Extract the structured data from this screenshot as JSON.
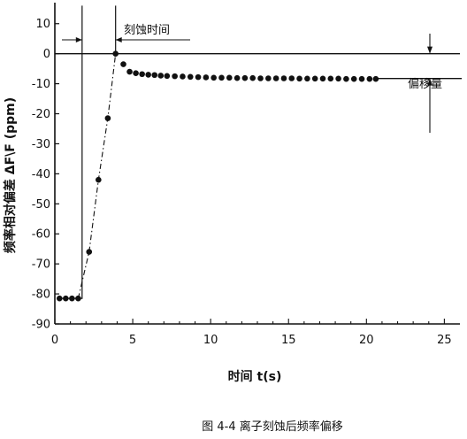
{
  "chart_data": {
    "type": "scatter",
    "title": "",
    "xlabel": "时间 t(s)",
    "ylabel": "频率相对偏差 ΔF\\F (ppm)",
    "xlim": [
      0,
      26
    ],
    "ylim": [
      -90,
      17
    ],
    "xticks": [
      0,
      5,
      10,
      15,
      20,
      25
    ],
    "yticks": [
      10,
      0,
      -10,
      -20,
      -30,
      -40,
      -50,
      -60,
      -70,
      -80,
      -90
    ],
    "grid": false,
    "legend": "none",
    "x": [
      0.3,
      0.7,
      1.1,
      1.5,
      2.2,
      2.8,
      3.4,
      3.9,
      4.4,
      4.8,
      5.2,
      5.6,
      6.0,
      6.4,
      6.8,
      7.2,
      7.7,
      8.2,
      8.7,
      9.2,
      9.7,
      10.2,
      10.7,
      11.2,
      11.7,
      12.2,
      12.7,
      13.2,
      13.7,
      14.2,
      14.7,
      15.2,
      15.7,
      16.2,
      16.7,
      17.2,
      17.7,
      18.2,
      18.7,
      19.2,
      19.7,
      20.2,
      20.6
    ],
    "values": [
      -81.5,
      -81.5,
      -81.5,
      -81.5,
      -66,
      -42,
      -21.5,
      0,
      -3.5,
      -6,
      -6.5,
      -6.8,
      -7,
      -7.1,
      -7.3,
      -7.4,
      -7.5,
      -7.6,
      -7.7,
      -7.8,
      -7.9,
      -8,
      -8,
      -8,
      -8.1,
      -8.1,
      -8.1,
      -8.2,
      -8.2,
      -8.2,
      -8.2,
      -8.2,
      -8.3,
      -8.3,
      -8.3,
      -8.3,
      -8.3,
      -8.3,
      -8.4,
      -8.4,
      -8.4,
      -8.4,
      -8.4
    ],
    "annotations": [
      "刻蚀时间",
      "偏移量"
    ],
    "caption": "图 4-4  离子刻蚀后频率偏移"
  }
}
